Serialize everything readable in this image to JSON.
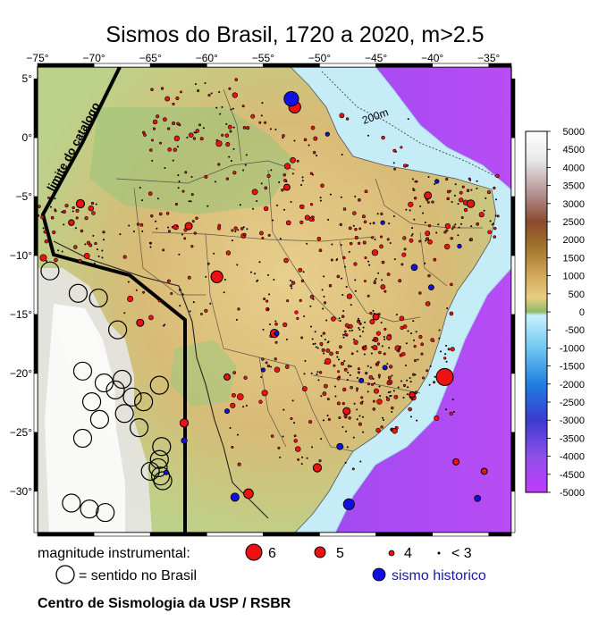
{
  "title": "Sismos do Brasil, 1720 a 2020, m>2.5",
  "map": {
    "lon_range": [
      -75,
      -33
    ],
    "lat_range": [
      -33.5,
      6
    ],
    "lon_ticks": [
      "−75°",
      "−70°",
      "−65°",
      "−60°",
      "−55°",
      "−50°",
      "−45°",
      "−40°",
      "−35°"
    ],
    "lat_ticks": [
      "5°",
      "0°",
      "−5°",
      "−10°",
      "−15°",
      "−20°",
      "−25°",
      "−30°"
    ],
    "catalog_label": "limite do catalogo",
    "contour_label": "200m",
    "colors": {
      "ocean_deep": "#b04cf0",
      "ocean_shelf": "#bfe6f5",
      "lowland": "#a8d08a",
      "highland": "#d9b56b",
      "mountain": "#f2f2f2",
      "quake_fill": "#ee1111",
      "historic_fill": "#1010e0"
    }
  },
  "colorbar": {
    "ticks": [
      "5000",
      "4500",
      "4000",
      "3500",
      "3000",
      "2500",
      "2000",
      "1500",
      "1000",
      "500",
      "0",
      "-500",
      "-1000",
      "-1500",
      "-2000",
      "-2500",
      "-3000",
      "-3500",
      "-4000",
      "-4500",
      "-5000"
    ]
  },
  "legend": {
    "instrumental_label": "magnitude instrumental:",
    "mag6": "6",
    "mag5": "5",
    "mag4": "4",
    "mag3": "< 3",
    "felt_label": "= sentido no Brasil",
    "historic_label": "sismo historico"
  },
  "credit": "Centro de Sismologia da USP / RSBR",
  "quakes": {
    "large": [
      [
        -38.9,
        -20.3,
        6
      ],
      [
        -59.1,
        -11.8,
        5.5
      ],
      [
        -52.2,
        2.6,
        5.5
      ],
      [
        -71.2,
        -5.6,
        5
      ],
      [
        -62.0,
        -24.2,
        5
      ],
      [
        -54.0,
        -16.6,
        5
      ],
      [
        -56.3,
        -30.2,
        5.2
      ],
      [
        -50.2,
        -28.0,
        5
      ],
      [
        -47.6,
        -23.2,
        4.8
      ],
      [
        -40.4,
        -4.9,
        4.8
      ],
      [
        -36.6,
        -5.6,
        4.9
      ],
      [
        -61.6,
        -7.5,
        4.8
      ],
      [
        -37.9,
        -27.5,
        4.6
      ],
      [
        -65.9,
        -15.7,
        4.8
      ],
      [
        -72.0,
        -7.2,
        4.5
      ],
      [
        -45.0,
        -15.2,
        4.6
      ],
      [
        -52.9,
        -4.2,
        4.6
      ],
      [
        -58.2,
        -20.3,
        4.6
      ],
      [
        -41.8,
        -21.8,
        4.5
      ],
      [
        -35.4,
        -28.3,
        4.6
      ]
    ],
    "historic": [
      [
        -52.5,
        3.3,
        5.8
      ],
      [
        -47.4,
        -31.1,
        5.4
      ],
      [
        -57.5,
        -30.5,
        5
      ],
      [
        -36.0,
        -30.6,
        4.6
      ],
      [
        -41.6,
        -11.0,
        4.6
      ],
      [
        -40.1,
        -12.7,
        4.4
      ],
      [
        -48.2,
        -26.2,
        4.6
      ],
      [
        -46.3,
        -20.6,
        4.2
      ],
      [
        -53.8,
        -16.6,
        4.2
      ],
      [
        -58.2,
        -23.2,
        4.2
      ],
      [
        -44.4,
        -7.2,
        4.0
      ],
      [
        -62.0,
        -25.7,
        4.5
      ],
      [
        -49.3,
        0.3,
        4.0
      ],
      [
        -39.6,
        -3.7,
        4.0
      ],
      [
        -37.6,
        -9.2,
        4.0
      ],
      [
        -63.6,
        -28.4,
        4.2
      ],
      [
        -55.0,
        -19.7,
        4.0
      ],
      [
        -44.2,
        -19.5,
        4.2
      ]
    ],
    "felt": [
      [
        -73.9,
        -11.3
      ],
      [
        -71.4,
        -13.2
      ],
      [
        -69.6,
        -13.6
      ],
      [
        -67.9,
        -16.3
      ],
      [
        -71.0,
        -19.8
      ],
      [
        -69.1,
        -20.8
      ],
      [
        -67.5,
        -20.5
      ],
      [
        -66.6,
        -22.0
      ],
      [
        -68.1,
        -21.4
      ],
      [
        -70.2,
        -22.4
      ],
      [
        -67.3,
        -23.4
      ],
      [
        -65.6,
        -22.4
      ],
      [
        -64.2,
        -21.0
      ],
      [
        -69.5,
        -23.9
      ],
      [
        -71.0,
        -25.5
      ],
      [
        -66.0,
        -24.6
      ],
      [
        -64.0,
        -26.2
      ],
      [
        -64.2,
        -27.3
      ],
      [
        -64.3,
        -28.0
      ],
      [
        -64.1,
        -28.7
      ],
      [
        -63.9,
        -29.1
      ],
      [
        -65.0,
        -28.3
      ],
      [
        -72.0,
        -31.0
      ],
      [
        -70.4,
        -31.5
      ],
      [
        -69.0,
        -31.8
      ]
    ]
  }
}
